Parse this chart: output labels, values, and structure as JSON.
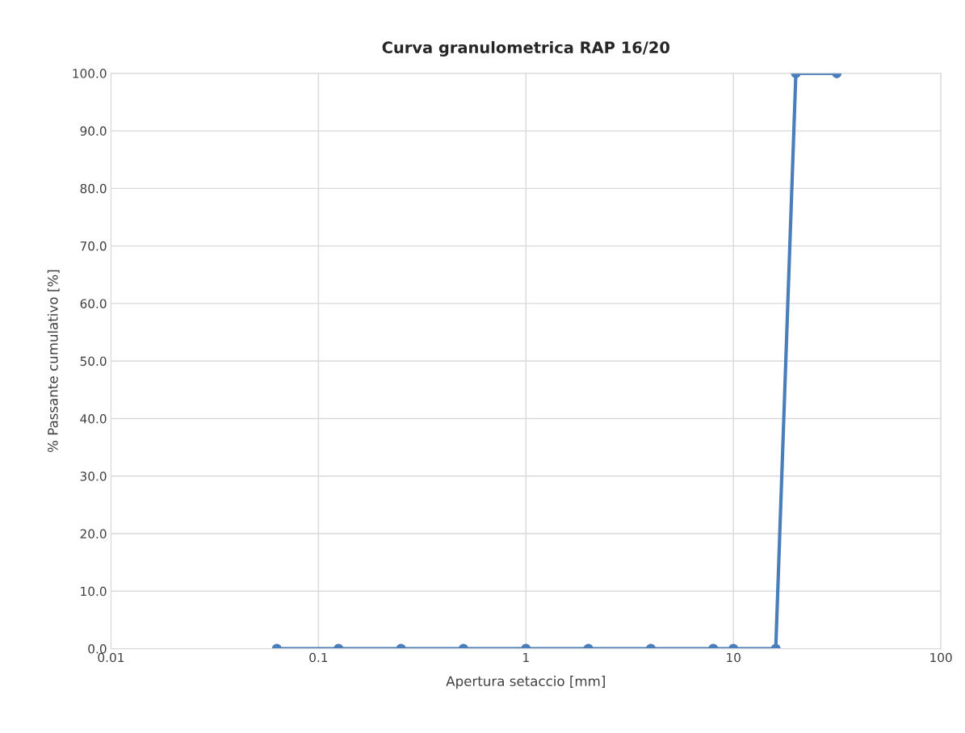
{
  "chart_data": {
    "type": "line",
    "title": "Curva granulometrica RAP 16/20",
    "xlabel": "Apertura setaccio [mm]",
    "ylabel": "% Passante cumulativo [%]",
    "x": [
      0.063,
      0.125,
      0.25,
      0.5,
      1,
      2,
      4,
      8,
      10,
      16,
      20,
      31.5
    ],
    "series": [
      {
        "color": "#4a7ebb",
        "values": [
          0,
          0,
          0,
          0,
          0,
          0,
          0,
          0,
          0,
          0,
          100,
          100
        ]
      }
    ],
    "log": "x",
    "xlim": [
      0.01,
      100
    ],
    "xticks": [
      0.01,
      0.1,
      1,
      10,
      100
    ],
    "ylim": [
      0,
      100
    ],
    "yticks": [
      {
        "value": 0,
        "label": "0.0"
      },
      {
        "value": 10,
        "label": "10.0"
      },
      {
        "value": 20,
        "label": "20.0"
      },
      {
        "value": 30,
        "label": "30.0"
      },
      {
        "value": 40,
        "label": "40.0"
      },
      {
        "value": 50,
        "label": "50.0"
      },
      {
        "value": 60,
        "label": "60.0"
      },
      {
        "value": 70,
        "label": "70.0"
      },
      {
        "value": 80,
        "label": "80.0"
      },
      {
        "value": 90,
        "label": "90.0"
      },
      {
        "value": 100,
        "label": "100.0"
      }
    ],
    "grid": true,
    "marker": "circle",
    "line_style": "solid"
  }
}
